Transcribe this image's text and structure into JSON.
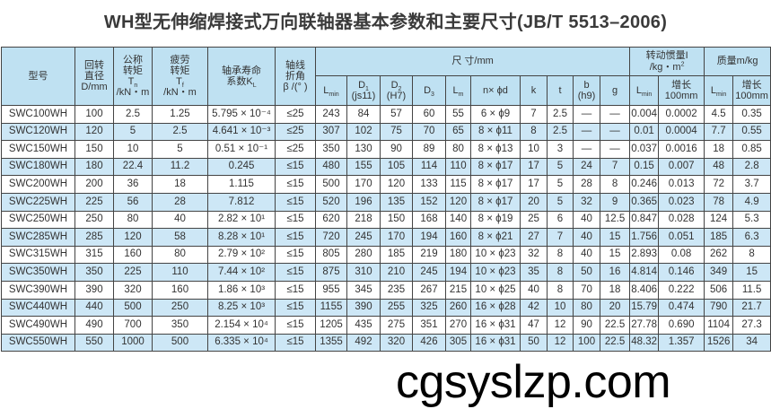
{
  "title": "WH型无伸缩焊接式万向联轴器基本参数和主要尺寸(JB/T 5513–2006)",
  "header": {
    "model": "型号",
    "diameter": [
      "回转",
      "直径",
      "D/mm"
    ],
    "tn": [
      "公称",
      "转矩",
      "T",
      "n",
      "/kN・m"
    ],
    "tf": [
      "疲劳",
      "转矩",
      "T",
      "f",
      "/kN・m"
    ],
    "kl": [
      "轴承寿命",
      "系数K",
      "L"
    ],
    "beta": [
      "轴线",
      "折角",
      "β /(°  )"
    ],
    "dims": "尺  寸/mm",
    "inertia": [
      "转动惯量I",
      "/kg・m",
      "2"
    ],
    "mass": "质量m/kg",
    "lmin": [
      "L",
      "min"
    ],
    "d1": [
      "D",
      "1",
      "(js11)"
    ],
    "d2": [
      "D",
      "2",
      "(H7)"
    ],
    "d3": [
      "D",
      "3"
    ],
    "lm": [
      "L",
      "m"
    ],
    "nd": "n× ϕd",
    "k": "k",
    "t": "t",
    "b": [
      "b",
      "(h9)"
    ],
    "g": "g",
    "inc": [
      "增长",
      "100mm"
    ]
  },
  "rows": [
    [
      "SWC100WH",
      "100",
      "2.5",
      "1.25",
      "5.795 × 10⁻⁴",
      "≤25",
      "243",
      "84",
      "57",
      "60",
      "55",
      "6 × ϕ9",
      "7",
      "2.5",
      "—",
      "—",
      "0.004",
      "0.0002",
      "4.5",
      "0.35"
    ],
    [
      "SWC120WH",
      "120",
      "5",
      "2.5",
      "4.641 × 10⁻³",
      "≤25",
      "307",
      "102",
      "75",
      "70",
      "65",
      "8 × ϕ11",
      "8",
      "2.5",
      "—",
      "—",
      "0.01",
      "0.0004",
      "7.7",
      "0.55"
    ],
    [
      "SWC150WH",
      "150",
      "10",
      "5",
      "0.51 × 10⁻¹",
      "≤25",
      "350",
      "130",
      "90",
      "89",
      "80",
      "8 × ϕ13",
      "10",
      "3",
      "—",
      "—",
      "0.037",
      "0.0016",
      "18",
      "0.85"
    ],
    [
      "SWC180WH",
      "180",
      "22.4",
      "11.2",
      "0.245",
      "≤15",
      "480",
      "155",
      "105",
      "114",
      "110",
      "8 × ϕ17",
      "17",
      "5",
      "24",
      "7",
      "0.15",
      "0.007",
      "48",
      "2.8"
    ],
    [
      "SWC200WH",
      "200",
      "36",
      "18",
      "1.115",
      "≤15",
      "500",
      "170",
      "120",
      "133",
      "115",
      "8 × ϕ17",
      "17",
      "5",
      "28",
      "8",
      "0.246",
      "0.013",
      "72",
      "3.7"
    ],
    [
      "SWC225WH",
      "225",
      "56",
      "28",
      "7.812",
      "≤15",
      "520",
      "196",
      "135",
      "152",
      "120",
      "8 × ϕ17",
      "20",
      "5",
      "32",
      "9",
      "0.365",
      "0.023",
      "78",
      "4.9"
    ],
    [
      "SWC250WH",
      "250",
      "80",
      "40",
      "2.82 × 10¹",
      "≤15",
      "620",
      "218",
      "150",
      "168",
      "140",
      "8 × ϕ19",
      "25",
      "6",
      "40",
      "12.5",
      "0.847",
      "0.028",
      "124",
      "5.3"
    ],
    [
      "SWC285WH",
      "285",
      "120",
      "58",
      "8.28 × 10¹",
      "≤15",
      "720",
      "245",
      "170",
      "194",
      "160",
      "8 × ϕ21",
      "27",
      "7",
      "40",
      "15",
      "1.756",
      "0.051",
      "185",
      "6.3"
    ],
    [
      "SWC315WH",
      "315",
      "160",
      "80",
      "2.79 × 10²",
      "≤15",
      "805",
      "280",
      "185",
      "219",
      "180",
      "10 × ϕ23",
      "32",
      "8",
      "40",
      "15",
      "2.893",
      "0.08",
      "262",
      "8"
    ],
    [
      "SWC350WH",
      "350",
      "225",
      "110",
      "7.44 × 10²",
      "≤15",
      "875",
      "310",
      "210",
      "245",
      "194",
      "10 × ϕ23",
      "35",
      "8",
      "50",
      "16",
      "4.814",
      "0.146",
      "349",
      "15"
    ],
    [
      "SWC390WH",
      "390",
      "320",
      "160",
      "1.86 × 10³",
      "≤15",
      "955",
      "345",
      "235",
      "267",
      "215",
      "10 × ϕ25",
      "40",
      "8",
      "70",
      "18",
      "8.406",
      "0.222",
      "506",
      "11.5"
    ],
    [
      "SWC440WH",
      "440",
      "500",
      "250",
      "8.25 × 10³",
      "≤15",
      "1155",
      "390",
      "255",
      "325",
      "260",
      "16 × ϕ28",
      "42",
      "10",
      "80",
      "20",
      "15.79",
      "0.474",
      "790",
      "21.7"
    ],
    [
      "SWC490WH",
      "490",
      "700",
      "350",
      "2.154 × 10⁴",
      "≤15",
      "1205",
      "435",
      "275",
      "351",
      "270",
      "16 × ϕ31",
      "47",
      "12",
      "90",
      "22.5",
      "27.78",
      "0.690",
      "1104",
      "27.3"
    ],
    [
      "SWC550WH",
      "550",
      "1000",
      "500",
      "6.335 × 10⁴",
      "≤15",
      "1355",
      "492",
      "320",
      "426",
      "305",
      "16 × ϕ31",
      "50",
      "12",
      "100",
      "22.5",
      "48.32",
      "1.357",
      "1526",
      "34"
    ]
  ],
  "colors": {
    "header_bg": "#bfe1f2",
    "stripe_bg": "#cde7f6",
    "border": "#444444"
  },
  "watermark": "cgsyslzp.com"
}
